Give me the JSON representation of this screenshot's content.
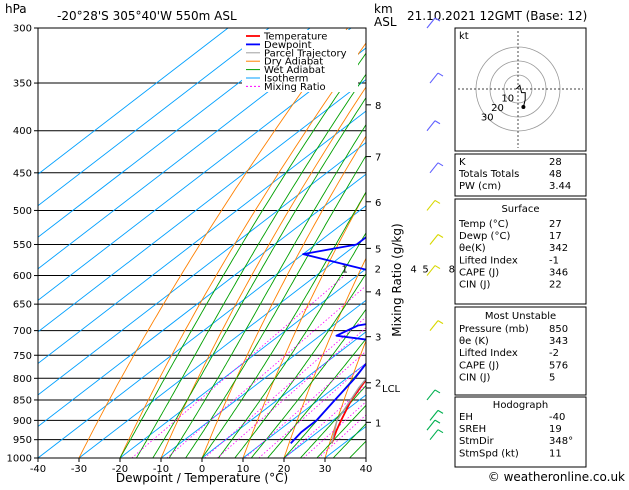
{
  "header": {
    "location": "-20°28'S  305°40'W  550m  ASL",
    "datetime": "21.10.2021  12GMT  (Base: 12)",
    "hpa": "hPa",
    "km": "km",
    "asl": "ASL"
  },
  "footer": {
    "credit": "© weatheronline.co.uk"
  },
  "colors": {
    "temperature": "#ff0000",
    "dewpoint": "#0000ff",
    "parcel": "#a0a0a0",
    "dry_adiabat": "#ff8000",
    "wet_adiabat": "#00a000",
    "isotherm": "#00a0ff",
    "mixing_ratio": "#ff00ff",
    "wind": "#e6e600"
  },
  "chart_data": {
    "type": "line",
    "title": "Skew-T log-P diagram",
    "xlabel": "Dewpoint / Temperature (°C)",
    "ylabel": "hPa",
    "right_axis_label": "Mixing Ratio (g/kg)",
    "xlim": [
      -40,
      40
    ],
    "pressure_ticks": [
      300,
      350,
      400,
      450,
      500,
      550,
      600,
      650,
      700,
      750,
      800,
      850,
      900,
      950,
      1000
    ],
    "temp_ticks": [
      -40,
      -30,
      -20,
      -10,
      0,
      10,
      20,
      30,
      40
    ],
    "km_ticks": [
      {
        "label": "8",
        "p": 372
      },
      {
        "label": "7",
        "p": 430
      },
      {
        "label": "6",
        "p": 488
      },
      {
        "label": "5",
        "p": 556
      },
      {
        "label": "4",
        "p": 628
      },
      {
        "label": "3",
        "p": 712
      },
      {
        "label": "2",
        "p": 810
      },
      {
        "label": "1",
        "p": 905
      }
    ],
    "lcl": {
      "label": "LCL",
      "p": 822
    },
    "mixing_ratio_labels": [
      "1",
      "2",
      "4",
      "5",
      "8",
      "10",
      "15",
      "20",
      "25"
    ],
    "mixing_ratio_values": [
      1,
      2,
      4,
      5,
      8,
      10,
      15,
      20,
      25
    ],
    "legend": [
      "Temperature",
      "Dewpoint",
      "Parcel Trajectory",
      "Dry Adiabat",
      "Wet Adiabat",
      "Isotherm",
      "Mixing Ratio"
    ],
    "series": [
      {
        "name": "Temperature",
        "values": [
          {
            "p": 960,
            "t": 27
          },
          {
            "p": 925,
            "t": 24
          },
          {
            "p": 900,
            "t": 22
          },
          {
            "p": 850,
            "t": 18
          },
          {
            "p": 800,
            "t": 15
          },
          {
            "p": 750,
            "t": 11
          },
          {
            "p": 700,
            "t": 8
          },
          {
            "p": 650,
            "t": 3
          },
          {
            "p": 600,
            "t": -1
          },
          {
            "p": 550,
            "t": -5
          },
          {
            "p": 500,
            "t": -10
          },
          {
            "p": 450,
            "t": -15
          },
          {
            "p": 400,
            "t": -21
          },
          {
            "p": 350,
            "t": -29
          },
          {
            "p": 300,
            "t": -38
          }
        ]
      },
      {
        "name": "Dewpoint",
        "values": [
          {
            "p": 960,
            "t": 17
          },
          {
            "p": 930,
            "t": 16
          },
          {
            "p": 900,
            "t": 16
          },
          {
            "p": 850,
            "t": 14
          },
          {
            "p": 800,
            "t": 12
          },
          {
            "p": 750,
            "t": 9
          },
          {
            "p": 720,
            "t": 5
          },
          {
            "p": 710,
            "t": -6
          },
          {
            "p": 690,
            "t": -4
          },
          {
            "p": 680,
            "t": 2
          },
          {
            "p": 600,
            "t": -12
          },
          {
            "p": 565,
            "t": -40
          },
          {
            "p": 550,
            "t": -30
          },
          {
            "p": 500,
            "t": -30
          },
          {
            "p": 480,
            "t": -35
          },
          {
            "p": 470,
            "t": -45
          },
          {
            "p": 450,
            "t": -40
          },
          {
            "p": 400,
            "t": -40
          },
          {
            "p": 380,
            "t": -42
          },
          {
            "p": 350,
            "t": -50
          },
          {
            "p": 300,
            "t": -60
          }
        ]
      },
      {
        "name": "Parcel Trajectory",
        "values": [
          {
            "p": 960,
            "t": 27
          },
          {
            "p": 900,
            "t": 21
          },
          {
            "p": 822,
            "t": 16
          },
          {
            "p": 750,
            "t": 12
          },
          {
            "p": 700,
            "t": 9
          },
          {
            "p": 650,
            "t": 6
          },
          {
            "p": 600,
            "t": 2
          },
          {
            "p": 550,
            "t": -3
          },
          {
            "p": 500,
            "t": -8
          },
          {
            "p": 450,
            "t": -14
          },
          {
            "p": 400,
            "t": -20
          },
          {
            "p": 350,
            "t": -28
          },
          {
            "p": 300,
            "t": -37
          }
        ]
      }
    ],
    "wind_barbs_p": [
      300,
      350,
      400,
      450,
      500,
      550,
      600,
      700,
      850,
      900,
      925,
      950
    ]
  },
  "indices": {
    "rows": [
      {
        "label": "K",
        "value": "28"
      },
      {
        "label": "Totals Totals",
        "value": "48"
      },
      {
        "label": "PW (cm)",
        "value": "3.44"
      }
    ],
    "surface": {
      "title": "Surface",
      "rows": [
        {
          "label": "Temp (°C)",
          "value": "27"
        },
        {
          "label": "Dewp (°C)",
          "value": "17"
        },
        {
          "label": "θe(K)",
          "value": "342"
        },
        {
          "label": "Lifted Index",
          "value": "-1"
        },
        {
          "label": "CAPE (J)",
          "value": "346"
        },
        {
          "label": "CIN (J)",
          "value": "22"
        }
      ]
    },
    "unstable": {
      "title": "Most Unstable",
      "rows": [
        {
          "label": "Pressure (mb)",
          "value": "850"
        },
        {
          "label": "θe (K)",
          "value": "343"
        },
        {
          "label": "Lifted Index",
          "value": "-2"
        },
        {
          "label": "CAPE (J)",
          "value": "576"
        },
        {
          "label": "CIN (J)",
          "value": "5"
        }
      ]
    },
    "hodo": {
      "title": "Hodograph",
      "rows": [
        {
          "label": "EH",
          "value": "-40"
        },
        {
          "label": "SREH",
          "value": "19"
        },
        {
          "label": "StmDir",
          "value": "348°"
        },
        {
          "label": "StmSpd (kt)",
          "value": "11"
        }
      ]
    }
  },
  "hodograph": {
    "label": "kt",
    "ring_labels": [
      "10",
      "20",
      "30"
    ],
    "trace": [
      {
        "u": -1,
        "v": 0
      },
      {
        "u": 0,
        "v": 1
      },
      {
        "u": 1,
        "v": 2
      },
      {
        "u": 2,
        "v": -2
      },
      {
        "u": 4,
        "v": -2
      },
      {
        "u": 4,
        "v": -6
      },
      {
        "u": 3,
        "v": -10
      }
    ]
  }
}
